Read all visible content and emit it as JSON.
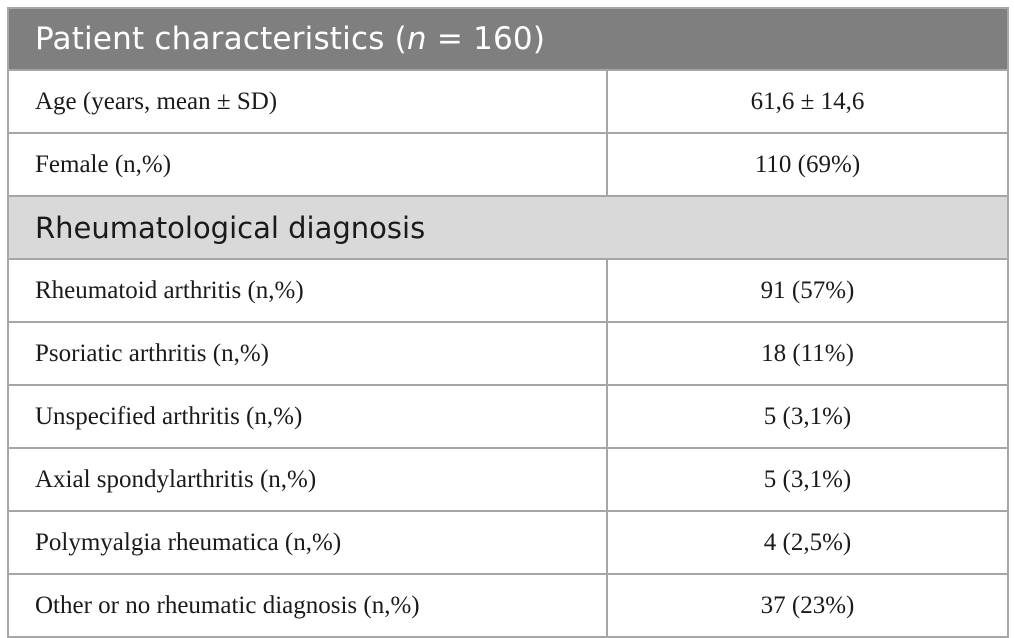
{
  "table": {
    "title": {
      "prefix": "Patient characteristics (",
      "n_symbol": "n",
      "suffix": " = 160)"
    },
    "general_rows": [
      {
        "label": "Age (years, mean ± SD)",
        "value": "61,6 ± 14,6"
      },
      {
        "label": "Female (n,%)",
        "value": "110 (69%)"
      }
    ],
    "section_heading": "Rheumatological diagnosis",
    "diagnosis_rows": [
      {
        "label": "Rheumatoid arthritis (n,%)",
        "value": "91 (57%)"
      },
      {
        "label": "Psoriatic arthritis (n,%)",
        "value": "18 (11%)"
      },
      {
        "label": "Unspecified arthritis (n,%)",
        "value": "5 (3,1%)"
      },
      {
        "label": "Axial spondylarthritis (n,%)",
        "value": "5 (3,1%)"
      },
      {
        "label": "Polymyalgia rheumatica (n,%)",
        "value": "4 (2,5%)"
      },
      {
        "label": "Other or no rheumatic diagnosis (n,%)",
        "value": "37 (23%)"
      }
    ],
    "colors": {
      "header_bg": "#7f7f7f",
      "section_bg": "#d9d9d9",
      "border": "#a6a6a6",
      "text": "#1a1a1a"
    }
  }
}
